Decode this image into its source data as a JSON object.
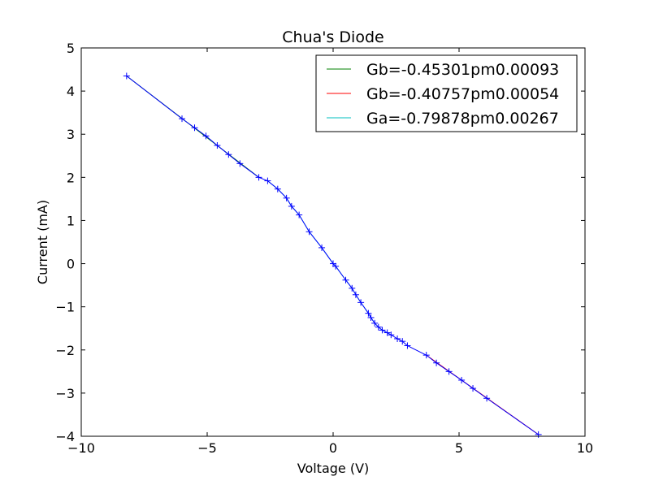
{
  "chart_data": {
    "type": "line",
    "title": "Chua's Diode",
    "xlabel": "Voltage (V)",
    "ylabel": "Current (mA)",
    "xlim": [
      -10,
      10
    ],
    "ylim": [
      -4,
      5
    ],
    "xticks": [
      -10,
      -5,
      0,
      5,
      10
    ],
    "xtick_labels": [
      "−10",
      "−5",
      "0",
      "5",
      "10"
    ],
    "yticks": [
      -4,
      -3,
      -2,
      -1,
      0,
      1,
      2,
      3,
      4,
      5
    ],
    "ytick_labels": [
      "−4",
      "−3",
      "−2",
      "−1",
      "0",
      "1",
      "2",
      "3",
      "4",
      "5"
    ],
    "grid": false,
    "legend_position": "top-right",
    "measured": {
      "color": "#0000ff",
      "marker": "+",
      "x": [
        -8.2,
        -6.0,
        -5.5,
        -5.05,
        -4.6,
        -4.15,
        -3.7,
        -2.95,
        -2.6,
        -2.2,
        -1.85,
        -1.65,
        -1.35,
        -0.95,
        -0.45,
        0.0,
        0.1,
        0.5,
        0.75,
        0.9,
        1.1,
        1.4,
        1.5,
        1.65,
        1.8,
        1.95,
        2.15,
        2.3,
        2.55,
        2.75,
        2.95,
        3.7,
        4.1,
        4.6,
        5.1,
        5.55,
        6.1,
        8.15
      ],
      "y": [
        4.35,
        3.36,
        3.15,
        2.96,
        2.74,
        2.53,
        2.32,
        2.0,
        1.92,
        1.73,
        1.52,
        1.33,
        1.13,
        0.74,
        0.37,
        0.0,
        -0.06,
        -0.38,
        -0.57,
        -0.72,
        -0.9,
        -1.15,
        -1.25,
        -1.38,
        -1.47,
        -1.54,
        -1.6,
        -1.65,
        -1.74,
        -1.8,
        -1.9,
        -2.12,
        -2.3,
        -2.5,
        -2.7,
        -2.89,
        -3.12,
        -3.96
      ]
    },
    "series": [
      {
        "name": "Gb=-0.45301pm0.00093",
        "color": "#008000",
        "x": [
          -8.2,
          -2.95
        ],
        "y": [
          4.35,
          2.0
        ]
      },
      {
        "name": "Gb=-0.40757pm0.00054",
        "color": "#ff0000",
        "x": [
          3.7,
          8.15
        ],
        "y": [
          -2.12,
          -3.96
        ]
      },
      {
        "name": "Ga=-0.79878pm0.00267",
        "color": "#00bfbf",
        "x": [
          -2.6,
          -2.2,
          -1.85,
          -1.65,
          -1.35,
          -0.95,
          -0.45,
          0.0,
          0.1,
          0.5,
          0.75,
          0.9,
          1.1,
          1.4,
          1.5,
          1.65,
          1.8,
          1.95,
          2.15,
          2.3
        ],
        "y": [
          1.92,
          1.73,
          1.52,
          1.33,
          1.13,
          0.74,
          0.37,
          0.0,
          -0.06,
          -0.38,
          -0.57,
          -0.72,
          -0.9,
          -1.15,
          -1.25,
          -1.38,
          -1.47,
          -1.54,
          -1.6,
          -1.65
        ]
      }
    ]
  }
}
